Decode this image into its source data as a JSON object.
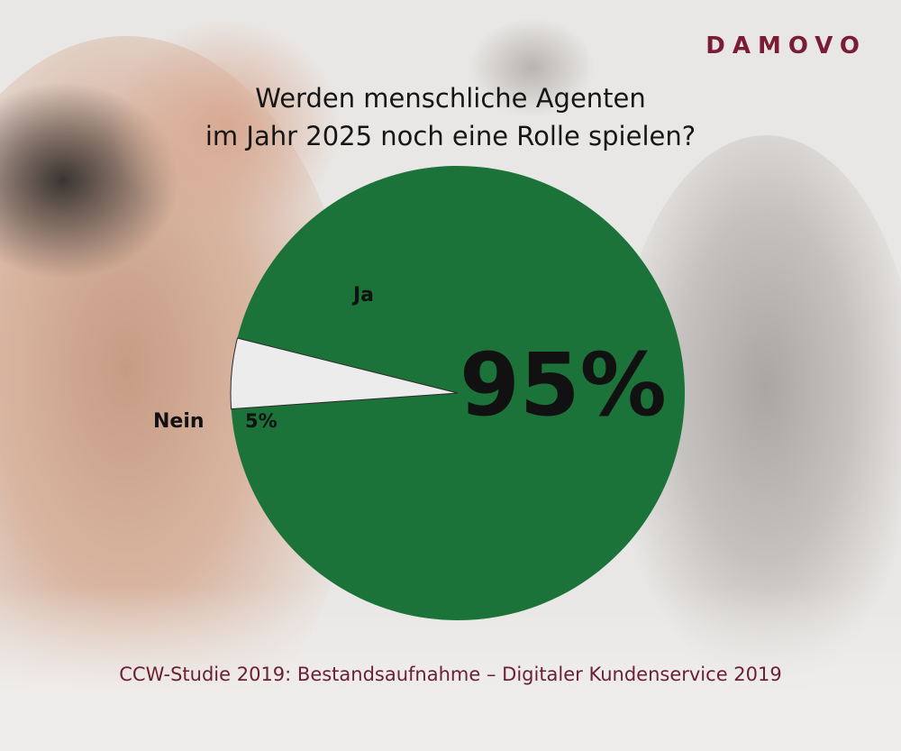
{
  "brand": "DAMOVO",
  "title_lines": [
    "Werden menschliche Agenten",
    "im Jahr 2025 noch eine Rolle spielen?"
  ],
  "source": "CCW-Studie 2019: Bestandsaufnahme – Digitaler Kundenservice 2019",
  "chart_data": {
    "type": "pie",
    "title": "Werden menschliche Agenten im Jahr 2025 noch eine Rolle spielen?",
    "slices": [
      {
        "label": "Ja",
        "value": 95,
        "value_label": "95%",
        "color": "#1b7339"
      },
      {
        "label": "Nein",
        "value": 5,
        "value_label": "5%",
        "color": "#ececec"
      }
    ]
  }
}
